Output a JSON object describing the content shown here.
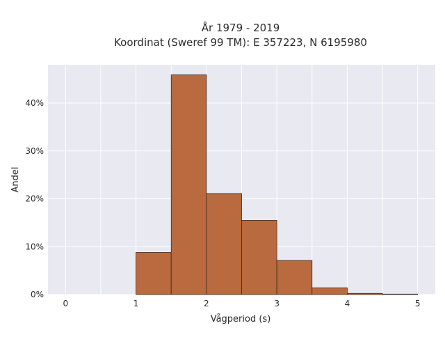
{
  "chart_data": {
    "type": "bar",
    "title_line1": "År 1979 - 2019",
    "title_line2": "Koordinat (Sweref 99 TM): E 357223, N 6195980",
    "xlabel": "Vågperiod (s)",
    "ylabel": "Andel",
    "xlim": [
      -0.25,
      5.25
    ],
    "ylim": [
      0,
      48
    ],
    "x_ticks": [
      0,
      1,
      2,
      3,
      4,
      5
    ],
    "y_ticks": [
      0,
      10,
      20,
      30,
      40
    ],
    "y_tick_labels": [
      "0%",
      "10%",
      "20%",
      "30%",
      "40%"
    ],
    "bins": [
      {
        "x0": 1.0,
        "x1": 1.5,
        "value": 8.8
      },
      {
        "x0": 1.5,
        "x1": 2.0,
        "value": 45.9
      },
      {
        "x0": 2.0,
        "x1": 2.5,
        "value": 21.1
      },
      {
        "x0": 2.5,
        "x1": 3.0,
        "value": 15.5
      },
      {
        "x0": 3.0,
        "x1": 3.5,
        "value": 7.1
      },
      {
        "x0": 3.5,
        "x1": 4.0,
        "value": 1.4
      },
      {
        "x0": 4.0,
        "x1": 4.5,
        "value": 0.25
      },
      {
        "x0": 4.5,
        "x1": 5.0,
        "value": 0.1
      }
    ],
    "grid": true,
    "colors": {
      "bar_fill": "#b96a3e",
      "bar_stroke": "#3a2a20",
      "plot_bg": "#e9e9f1",
      "grid": "#ffffff"
    }
  }
}
